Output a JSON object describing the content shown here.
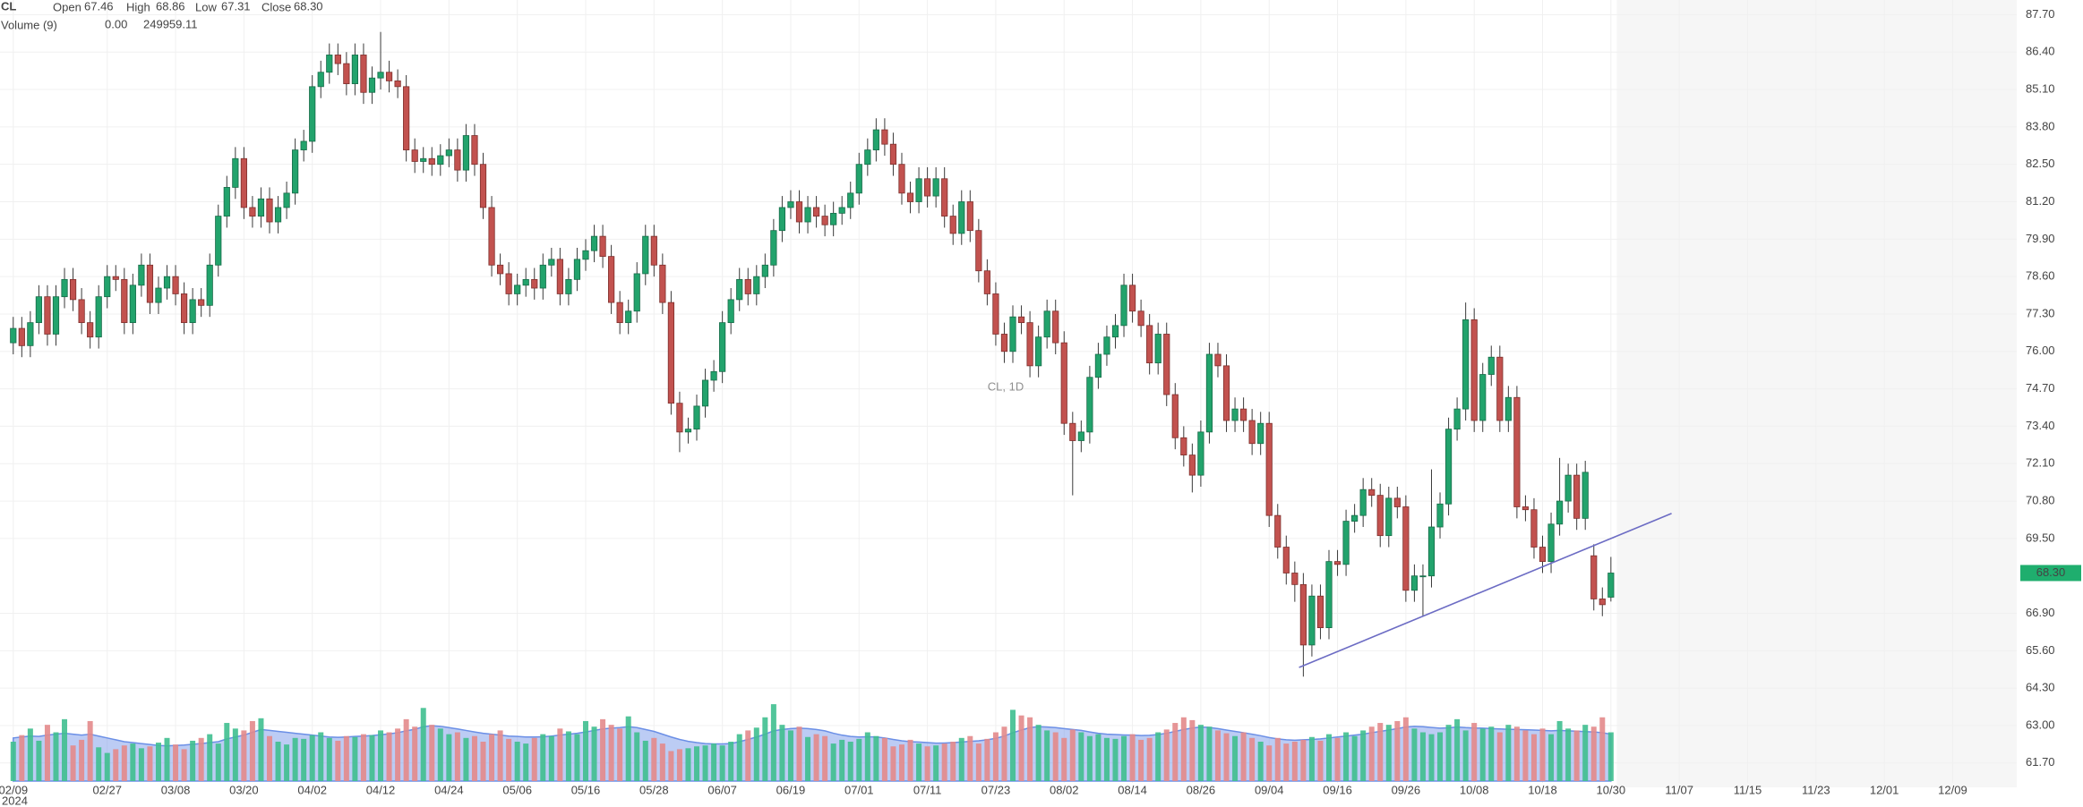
{
  "chart_data": {
    "type": "candlestick",
    "legend": {
      "symbol": "CL",
      "open": "Open",
      "high": "High",
      "low": "Low",
      "close": "Close",
      "close_label": "68.30",
      "volume_name": "Volume (9)",
      "volume_change": {
        "value": 0,
        "label": "0.00"
      }
    },
    "watermark": "CL, 1D",
    "year_label": "2024",
    "colors": {
      "up": "#22a36c",
      "down": "#c2524f",
      "volume_up": "#3fbf8f",
      "volume_down": "#e3898b",
      "volume_ma": "#6b8fe6",
      "trendline": "#6c6cc4"
    },
    "grid": true,
    "xlim": [
      -1.55,
      234.5
    ],
    "ylim": [
      61.01,
      88.21
    ],
    "volume_ylim": [
      0,
      420000
    ],
    "xticks": [
      {
        "value": 0,
        "label": "02/09"
      },
      {
        "value": 11,
        "label": "02/27"
      },
      {
        "value": 19,
        "label": "03/08"
      },
      {
        "value": 27,
        "label": "03/20"
      },
      {
        "value": 35,
        "label": "04/02"
      },
      {
        "value": 43,
        "label": "04/12"
      },
      {
        "value": 51,
        "label": "04/24"
      },
      {
        "value": 59,
        "label": "05/06"
      },
      {
        "value": 67,
        "label": "05/16"
      },
      {
        "value": 75,
        "label": "05/28"
      },
      {
        "value": 83,
        "label": "06/07"
      },
      {
        "value": 91,
        "label": "06/19"
      },
      {
        "value": 99,
        "label": "07/01"
      },
      {
        "value": 107,
        "label": "07/11"
      },
      {
        "value": 115,
        "label": "07/23"
      },
      {
        "value": 123,
        "label": "08/02"
      },
      {
        "value": 131,
        "label": "08/14"
      },
      {
        "value": 139,
        "label": "08/26"
      },
      {
        "value": 147,
        "label": "09/04"
      },
      {
        "value": 155,
        "label": "09/16"
      },
      {
        "value": 163,
        "label": "09/26"
      },
      {
        "value": 171,
        "label": "10/08"
      },
      {
        "value": 179,
        "label": "10/18"
      },
      {
        "value": 187,
        "label": "10/30"
      },
      {
        "value": 195,
        "label": "11/07"
      },
      {
        "value": 203,
        "label": "11/15"
      },
      {
        "value": 211,
        "label": "11/23"
      },
      {
        "value": 219,
        "label": "12/01"
      },
      {
        "value": 227,
        "label": "12/09"
      }
    ],
    "yticks": [
      {
        "value": 87.7,
        "label": "87.70"
      },
      {
        "value": 86.4,
        "label": "86.40"
      },
      {
        "value": 85.1,
        "label": "85.10"
      },
      {
        "value": 83.8,
        "label": "83.80"
      },
      {
        "value": 82.5,
        "label": "82.50"
      },
      {
        "value": 81.2,
        "label": "81.20"
      },
      {
        "value": 79.9,
        "label": "79.90"
      },
      {
        "value": 78.6,
        "label": "78.60"
      },
      {
        "value": 77.3,
        "label": "77.30"
      },
      {
        "value": 76,
        "label": "76.00"
      },
      {
        "value": 74.7,
        "label": "74.70"
      },
      {
        "value": 73.4,
        "label": "73.40"
      },
      {
        "value": 72.1,
        "label": "72.10"
      },
      {
        "value": 70.8,
        "label": "70.80"
      },
      {
        "value": 69.5,
        "label": "69.50"
      },
      {
        "value": 66.9,
        "label": "66.90"
      },
      {
        "value": 65.6,
        "label": "65.60"
      },
      {
        "value": 64.3,
        "label": "64.30"
      },
      {
        "value": 63,
        "label": "63.00"
      },
      {
        "value": 61.7,
        "label": "61.70"
      }
    ],
    "trendline": {
      "x": [
        150.5,
        194.1
      ],
      "y": [
        65.02,
        70.37
      ]
    },
    "open": [
      76.3,
      76.8,
      76.2,
      77.0,
      77.9,
      76.6,
      77.9,
      78.5,
      77.8,
      77.0,
      76.5,
      77.9,
      78.6,
      78.5,
      77.0,
      78.3,
      79.0,
      77.7,
      78.2,
      78.6,
      78.0,
      77.0,
      77.8,
      77.6,
      79.0,
      80.7,
      81.7,
      82.7,
      81.0,
      80.7,
      81.3,
      80.5,
      81.0,
      81.5,
      83.0,
      83.3,
      85.2,
      85.7,
      86.3,
      86.0,
      85.3,
      86.3,
      85.0,
      85.5,
      85.7,
      85.4,
      85.2,
      83.0,
      82.6,
      82.7,
      82.5,
      82.8,
      83.0,
      82.3,
      83.5,
      82.5,
      81.0,
      79.0,
      78.7,
      78.0,
      78.3,
      78.5,
      78.2,
      79.0,
      79.2,
      78.0,
      78.5,
      79.2,
      79.5,
      80.0,
      79.3,
      77.7,
      77.0,
      77.4,
      78.7,
      80.0,
      79.0,
      77.7,
      74.2,
      73.2,
      73.3,
      74.1,
      75.0,
      75.3,
      77.0,
      77.8,
      78.5,
      78.0,
      78.6,
      79.0,
      80.2,
      81.0,
      81.2,
      80.5,
      81.0,
      80.7,
      80.4,
      80.8,
      81.0,
      81.5,
      82.5,
      83.0,
      83.7,
      83.2,
      82.5,
      81.5,
      81.2,
      82.0,
      81.4,
      82.0,
      80.7,
      80.1,
      81.2,
      80.2,
      78.8,
      78.0,
      76.6,
      76.0,
      77.2,
      77.0,
      75.5,
      76.5,
      77.4,
      76.3,
      73.5,
      72.9,
      73.2,
      75.1,
      75.9,
      76.5,
      76.9,
      78.3,
      77.4,
      76.9,
      75.6,
      76.6,
      74.5,
      73.0,
      72.4,
      71.7,
      73.2,
      75.9,
      75.5,
      73.6,
      74.0,
      73.6,
      72.8,
      73.5,
      70.3,
      69.2,
      68.3,
      67.9,
      65.8,
      67.5,
      66.4,
      68.7,
      68.6,
      70.1,
      70.3,
      71.2,
      71.0,
      69.6,
      70.9,
      70.6,
      67.7,
      68.2,
      68.2,
      69.9,
      70.7,
      73.3,
      74.0,
      77.1,
      73.6,
      75.2,
      75.8,
      73.6,
      74.4,
      70.6,
      70.5,
      69.2,
      68.7,
      70.0,
      70.8,
      71.7,
      70.2,
      68.9,
      67.4,
      67.46
    ],
    "high": [
      77.2,
      77.2,
      77.4,
      78.3,
      78.3,
      78.3,
      78.9,
      78.9,
      78.2,
      77.4,
      78.3,
      79.0,
      79.0,
      78.9,
      78.7,
      79.4,
      79.4,
      78.6,
      79.0,
      79.0,
      78.4,
      78.2,
      78.2,
      79.4,
      81.1,
      82.1,
      83.1,
      83.1,
      81.4,
      81.7,
      81.7,
      81.4,
      81.9,
      83.4,
      83.7,
      85.6,
      86.1,
      86.7,
      86.7,
      86.4,
      86.7,
      86.7,
      85.9,
      87.1,
      86.1,
      85.8,
      85.6,
      83.4,
      83.1,
      83.1,
      83.2,
      83.4,
      83.4,
      83.9,
      83.9,
      82.9,
      81.4,
      79.4,
      79.1,
      78.7,
      78.9,
      78.9,
      79.4,
      79.6,
      79.6,
      78.9,
      79.6,
      79.9,
      80.4,
      80.4,
      79.7,
      78.1,
      77.8,
      79.1,
      80.4,
      80.4,
      79.4,
      78.1,
      74.6,
      73.7,
      74.5,
      75.4,
      75.7,
      77.4,
      78.2,
      78.9,
      78.9,
      79.0,
      79.4,
      80.6,
      81.4,
      81.6,
      81.6,
      81.4,
      81.4,
      81.1,
      81.2,
      81.4,
      81.9,
      82.9,
      83.4,
      84.1,
      84.1,
      83.6,
      82.9,
      81.9,
      82.4,
      82.4,
      82.4,
      82.4,
      81.1,
      81.6,
      81.6,
      80.6,
      79.2,
      78.4,
      77.0,
      77.6,
      77.6,
      77.4,
      76.9,
      77.8,
      77.8,
      76.7,
      73.9,
      73.6,
      75.5,
      76.3,
      76.9,
      77.3,
      78.7,
      78.7,
      77.8,
      77.3,
      77.0,
      77.0,
      74.9,
      73.4,
      72.8,
      73.6,
      76.3,
      76.3,
      75.9,
      74.4,
      74.4,
      74.0,
      73.9,
      73.9,
      70.7,
      69.6,
      68.7,
      68.3,
      67.9,
      67.9,
      69.1,
      69.1,
      70.5,
      70.7,
      71.6,
      71.6,
      71.4,
      71.3,
      71.3,
      71.0,
      68.6,
      68.6,
      71.9,
      71.1,
      73.7,
      74.4,
      77.7,
      77.5,
      75.6,
      76.2,
      76.2,
      74.8,
      74.8,
      71.0,
      70.9,
      69.6,
      70.4,
      72.3,
      72.1,
      72.1,
      72.2,
      69.3,
      67.8,
      68.86
    ],
    "low": [
      75.9,
      75.8,
      75.8,
      76.6,
      76.2,
      76.2,
      77.5,
      77.4,
      76.6,
      76.1,
      76.1,
      77.5,
      78.1,
      76.6,
      76.6,
      77.9,
      77.3,
      77.3,
      77.8,
      77.6,
      76.6,
      76.6,
      77.2,
      77.2,
      78.6,
      80.3,
      81.3,
      80.6,
      80.3,
      80.3,
      80.1,
      80.1,
      80.6,
      81.1,
      82.6,
      82.9,
      84.8,
      85.3,
      85.6,
      84.9,
      84.9,
      84.6,
      84.6,
      85.1,
      85.0,
      84.8,
      82.6,
      82.2,
      82.2,
      82.1,
      82.1,
      82.4,
      81.9,
      81.9,
      82.1,
      80.6,
      78.6,
      78.3,
      77.6,
      77.6,
      77.9,
      77.8,
      77.8,
      78.6,
      77.6,
      77.6,
      78.1,
      78.8,
      79.1,
      78.9,
      77.3,
      76.6,
      76.6,
      77.0,
      78.3,
      78.6,
      77.3,
      73.8,
      72.5,
      72.8,
      72.9,
      73.7,
      74.6,
      74.9,
      76.6,
      77.4,
      77.6,
      77.6,
      78.2,
      78.6,
      79.8,
      80.6,
      80.1,
      80.1,
      80.3,
      80.0,
      80.0,
      80.4,
      80.6,
      81.1,
      82.1,
      82.6,
      82.8,
      82.1,
      81.1,
      80.8,
      80.8,
      81.0,
      81.0,
      80.3,
      79.7,
      79.7,
      79.8,
      78.4,
      77.6,
      76.2,
      75.6,
      75.6,
      76.6,
      75.1,
      75.1,
      76.1,
      75.9,
      73.1,
      71.0,
      72.5,
      72.8,
      74.7,
      75.5,
      76.1,
      76.5,
      77.0,
      76.5,
      75.2,
      75.2,
      74.1,
      72.6,
      72.0,
      71.1,
      71.3,
      72.8,
      75.1,
      73.2,
      73.2,
      73.2,
      72.4,
      72.4,
      69.9,
      68.8,
      67.9,
      67.3,
      64.7,
      65.4,
      66.0,
      66.0,
      68.2,
      68.2,
      69.7,
      69.9,
      70.6,
      69.2,
      69.2,
      70.2,
      67.3,
      67.3,
      66.8,
      67.8,
      69.5,
      70.3,
      72.9,
      73.6,
      73.2,
      73.2,
      74.8,
      73.2,
      73.2,
      70.2,
      70.1,
      68.8,
      68.3,
      68.3,
      69.6,
      70.4,
      69.8,
      69.8,
      67.0,
      66.8,
      67.31
    ],
    "close": [
      76.8,
      76.2,
      77.0,
      77.9,
      76.6,
      77.9,
      78.5,
      77.8,
      77.0,
      76.5,
      77.9,
      78.6,
      78.5,
      77.0,
      78.3,
      79.0,
      77.7,
      78.2,
      78.6,
      78.0,
      77.0,
      77.8,
      77.6,
      79.0,
      80.7,
      81.7,
      82.7,
      81.0,
      80.7,
      81.3,
      80.5,
      81.0,
      81.5,
      83.0,
      83.3,
      85.2,
      85.7,
      86.3,
      86.0,
      85.3,
      86.3,
      85.0,
      85.5,
      85.7,
      85.4,
      85.2,
      83.0,
      82.6,
      82.7,
      82.5,
      82.8,
      83.0,
      82.3,
      83.5,
      82.5,
      81.0,
      79.0,
      78.7,
      78.0,
      78.3,
      78.5,
      78.2,
      79.0,
      79.2,
      78.0,
      78.5,
      79.2,
      79.5,
      80.0,
      79.3,
      77.7,
      77.0,
      77.4,
      78.7,
      80.0,
      79.0,
      77.7,
      74.2,
      73.2,
      73.3,
      74.1,
      75.0,
      75.3,
      77.0,
      77.8,
      78.5,
      78.0,
      78.6,
      79.0,
      80.2,
      81.0,
      81.2,
      80.5,
      81.0,
      80.7,
      80.4,
      80.8,
      81.0,
      81.5,
      82.5,
      83.0,
      83.7,
      83.2,
      82.5,
      81.5,
      81.2,
      82.0,
      81.4,
      82.0,
      80.7,
      80.1,
      81.2,
      80.2,
      78.8,
      78.0,
      76.6,
      76.0,
      77.2,
      77.0,
      75.5,
      76.5,
      77.4,
      76.3,
      73.5,
      72.9,
      73.2,
      75.1,
      75.9,
      76.5,
      76.9,
      78.3,
      77.4,
      76.9,
      75.6,
      76.6,
      74.5,
      73.0,
      72.4,
      71.7,
      73.2,
      75.9,
      75.5,
      73.6,
      74.0,
      73.6,
      72.8,
      73.5,
      70.3,
      69.2,
      68.3,
      67.9,
      65.8,
      67.5,
      66.4,
      68.7,
      68.6,
      70.1,
      70.3,
      71.2,
      71.0,
      69.6,
      70.9,
      70.6,
      67.7,
      68.2,
      68.2,
      69.9,
      70.7,
      73.3,
      74.0,
      77.1,
      73.6,
      75.2,
      75.8,
      73.6,
      74.4,
      70.6,
      70.5,
      69.2,
      68.7,
      70.0,
      70.8,
      71.7,
      70.2,
      71.8,
      67.4,
      67.2,
      68.3
    ],
    "volume": [
      210000,
      245000,
      280000,
      215000,
      300000,
      260000,
      330000,
      190000,
      220000,
      320000,
      180000,
      150000,
      170000,
      190000,
      200000,
      175000,
      185000,
      205000,
      230000,
      195000,
      170000,
      215000,
      230000,
      250000,
      200000,
      310000,
      280000,
      270000,
      320000,
      335000,
      240000,
      210000,
      195000,
      230000,
      225000,
      245000,
      260000,
      230000,
      215000,
      240000,
      235000,
      250000,
      245000,
      270000,
      260000,
      280000,
      330000,
      290000,
      390000,
      300000,
      280000,
      250000,
      260000,
      230000,
      240000,
      210000,
      250000,
      270000,
      225000,
      210000,
      200000,
      230000,
      250000,
      240000,
      280000,
      265000,
      250000,
      320000,
      290000,
      330000,
      300000,
      280000,
      345000,
      260000,
      215000,
      230000,
      200000,
      160000,
      170000,
      175000,
      185000,
      190000,
      200000,
      190000,
      210000,
      250000,
      270000,
      285000,
      340000,
      410000,
      300000,
      270000,
      290000,
      235000,
      250000,
      240000,
      200000,
      220000,
      210000,
      225000,
      260000,
      240000,
      230000,
      185000,
      195000,
      220000,
      200000,
      185000,
      190000,
      200000,
      210000,
      230000,
      240000,
      200000,
      225000,
      260000,
      290000,
      380000,
      350000,
      340000,
      300000,
      270000,
      260000,
      230000,
      275000,
      260000,
      240000,
      250000,
      230000,
      225000,
      240000,
      250000,
      220000,
      230000,
      260000,
      275000,
      310000,
      340000,
      325000,
      300000,
      290000,
      270000,
      255000,
      240000,
      260000,
      230000,
      210000,
      190000,
      230000,
      200000,
      210000,
      220000,
      235000,
      215000,
      250000,
      230000,
      260000,
      240000,
      270000,
      290000,
      310000,
      300000,
      320000,
      340000,
      280000,
      260000,
      250000,
      260000,
      300000,
      330000,
      270000,
      310000,
      280000,
      290000,
      260000,
      300000,
      290000,
      270000,
      250000,
      280000,
      250000,
      320000,
      280000,
      270000,
      300000,
      290000,
      340000,
      260000
    ],
    "volume_ma": [
      230000,
      235000,
      240000,
      238000,
      245000,
      250000,
      255000,
      250000,
      245000,
      250000,
      240000,
      230000,
      220000,
      210000,
      205000,
      200000,
      195000,
      190000,
      188000,
      190000,
      192000,
      196000,
      200000,
      205000,
      210000,
      225000,
      235000,
      245000,
      260000,
      275000,
      270000,
      265000,
      260000,
      255000,
      250000,
      245000,
      240000,
      235000,
      233000,
      235000,
      238000,
      240000,
      243000,
      247000,
      252000,
      258000,
      268000,
      276000,
      290000,
      295000,
      292000,
      285000,
      278000,
      270000,
      262000,
      255000,
      250000,
      245000,
      240000,
      238000,
      235000,
      235000,
      236000,
      240000,
      245000,
      250000,
      255000,
      262000,
      270000,
      278000,
      282000,
      285000,
      290000,
      285000,
      275000,
      265000,
      250000,
      235000,
      222000,
      212000,
      205000,
      200000,
      198000,
      198000,
      200000,
      210000,
      222000,
      235000,
      250000,
      268000,
      275000,
      280000,
      282000,
      280000,
      275000,
      268000,
      255000,
      245000,
      238000,
      235000,
      236000,
      235000,
      230000,
      222000,
      215000,
      210000,
      208000,
      205000,
      202000,
      203000,
      205000,
      208000,
      212000,
      215000,
      220000,
      228000,
      240000,
      258000,
      272000,
      285000,
      290000,
      288000,
      285000,
      280000,
      275000,
      270000,
      262000,
      255000,
      250000,
      248000,
      246000,
      245000,
      243000,
      244000,
      248000,
      255000,
      265000,
      275000,
      283000,
      288000,
      286000,
      280000,
      272000,
      265000,
      258000,
      250000,
      242000,
      232000,
      225000,
      220000,
      218000,
      220000,
      222000,
      225000,
      230000,
      235000,
      240000,
      245000,
      250000,
      258000,
      265000,
      272000,
      280000,
      288000,
      292000,
      290000,
      286000,
      282000,
      284000,
      288000,
      285000,
      283000,
      282000,
      280000,
      278000,
      276000,
      275000,
      274000,
      272000,
      270000,
      268000,
      270000,
      268000,
      266000,
      264000,
      262000,
      258000,
      249959.11
    ]
  }
}
